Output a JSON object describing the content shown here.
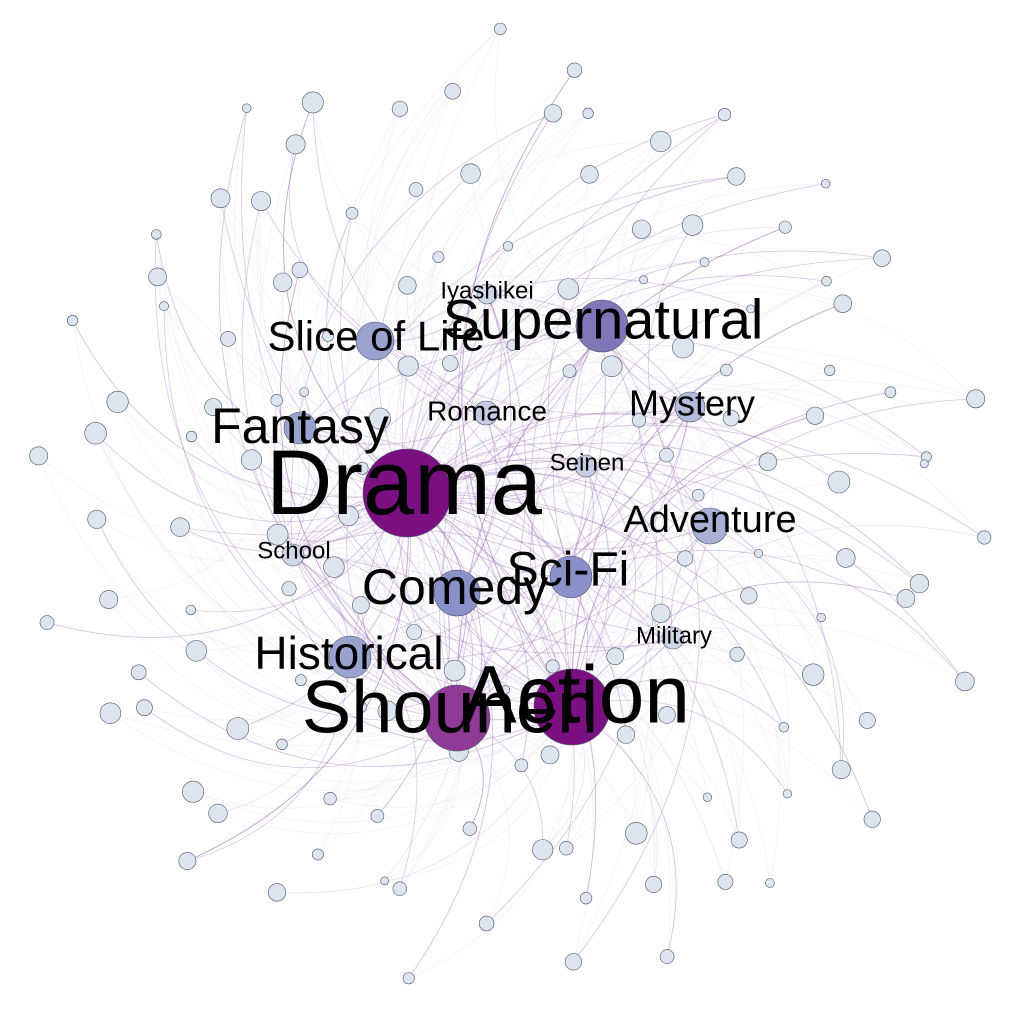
{
  "diagram": {
    "type": "network graph",
    "colors": {
      "background": "#ffffff",
      "edge_light": "#c8c0e0",
      "edge_dark": "#9d6bb5",
      "node_minor": "#dce4ef",
      "node_outline": "#4a5568",
      "hub_strongest": "#7b1083",
      "hub_strong": "#8e3a96",
      "hub_medium": "#7f77b8",
      "hub_light": "#9aa2cf"
    },
    "hubs": [
      {
        "id": "drama",
        "label": "Drama",
        "weight": 1.0,
        "color": "#7b1083"
      },
      {
        "id": "action",
        "label": "Action",
        "weight": 0.82,
        "color": "#7b1083"
      },
      {
        "id": "shounen",
        "label": "Shounen",
        "weight": 0.72,
        "color": "#8e3a96"
      },
      {
        "id": "supernatural",
        "label": "Supernatural",
        "weight": 0.5,
        "color": "#7f77b8"
      },
      {
        "id": "comedy",
        "label": "Comedy",
        "weight": 0.42,
        "color": "#8a90c8"
      },
      {
        "id": "sci-fi",
        "label": "Sci-Fi",
        "weight": 0.38,
        "color": "#8a90c8"
      },
      {
        "id": "fantasy",
        "label": "Fantasy",
        "weight": 0.4,
        "color": "#9aa2cf"
      },
      {
        "id": "historical",
        "label": "Historical",
        "weight": 0.36,
        "color": "#9aa2cf"
      },
      {
        "id": "slice-of-life",
        "label": "Slice of Life",
        "weight": 0.35,
        "color": "#9aa2cf"
      },
      {
        "id": "adventure",
        "label": "Adventure",
        "weight": 0.3,
        "color": "#a8b0d6"
      },
      {
        "id": "mystery",
        "label": "Mystery",
        "weight": 0.26,
        "color": "#b4bbdc"
      },
      {
        "id": "romance",
        "label": "Romance",
        "weight": 0.22,
        "color": "#c4cbe2"
      },
      {
        "id": "seinen",
        "label": "Seinen",
        "weight": 0.2,
        "color": "#c4cbe2"
      },
      {
        "id": "school",
        "label": "School",
        "weight": 0.2,
        "color": "#cfd6e8"
      },
      {
        "id": "military",
        "label": "Military",
        "weight": 0.2,
        "color": "#cfd6e8"
      },
      {
        "id": "iyashikei",
        "label": "Iyashikei",
        "weight": 0.18,
        "color": "#cfd6e8"
      }
    ]
  }
}
